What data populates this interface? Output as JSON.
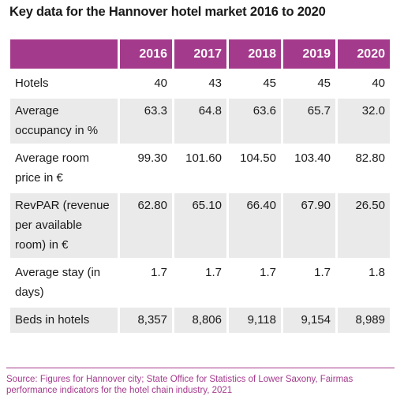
{
  "title": "Key data for the Hannover hotel market 2016 to 2020",
  "colors": {
    "header_background": "#a43a8c",
    "header_text": "#ffffff",
    "zebra_row": "#eaeaea",
    "source_text": "#a43a8c"
  },
  "chart_data": {
    "type": "table",
    "title": "Key data for the Hannover hotel market 2016 to 2020",
    "columns": [
      "2016",
      "2017",
      "2018",
      "2019",
      "2020"
    ],
    "rows": [
      {
        "label": "Hotels",
        "values": [
          "40",
          "43",
          "45",
          "45",
          "40"
        ]
      },
      {
        "label": "Average occupancy in %",
        "values": [
          "63.3",
          "64.8",
          "63.6",
          "65.7",
          "32.0"
        ]
      },
      {
        "label": "Average room price in €",
        "values": [
          "99.30",
          "101.60",
          "104.50",
          "103.40",
          "82.80"
        ]
      },
      {
        "label": "RevPAR (revenue per available room) in €",
        "values": [
          "62.80",
          "65.10",
          "66.40",
          "67.90",
          "26.50"
        ]
      },
      {
        "label": "Average stay (in days)",
        "values": [
          "1.7",
          "1.7",
          "1.7",
          "1.7",
          "1.8"
        ]
      },
      {
        "label": "Beds in hotels",
        "values": [
          "8,357",
          "8,806",
          "9,118",
          "9,154",
          "8,989"
        ]
      }
    ]
  },
  "source": "Source: Figures for Hannover city; State Office for Statistics of Lower Saxony, Fairmas performance indicators for the hotel chain industry, 2021"
}
